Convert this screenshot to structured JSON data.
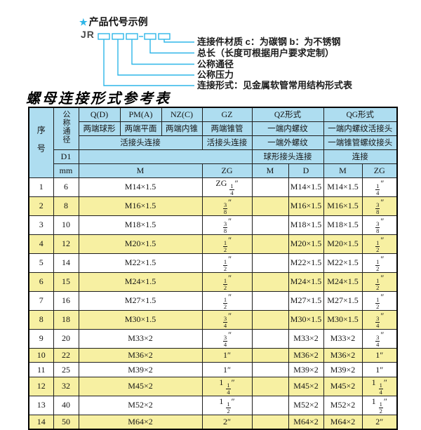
{
  "colors": {
    "accent": "#2eb6e8",
    "table_header_bg": "#aeddf0",
    "row_alt_bg": "#f7f0a2"
  },
  "diagram": {
    "star_icon": "★",
    "title": "产品代号示例",
    "code_prefix": "JR",
    "labels": [
      "连接件材质  c：为碳钢  b：为不锈钢",
      "总长（长度可根据用户要求定制）",
      "公称通径",
      "公称压力",
      "连接形式：见金属软管常用结构形式表"
    ]
  },
  "table": {
    "title": "螺母连接形式参考表",
    "header": {
      "seq": "序号",
      "dn": "公称通径",
      "d1": "D1",
      "mm": "mm",
      "q": "Q(D)",
      "pm": "PM(A)",
      "nz": "NZ(C)",
      "gz": "GZ",
      "qz": "QZ形式",
      "qg": "QG形式",
      "q_desc": "两端球形",
      "pm_desc": "两端平面",
      "nz_desc": "两端内锥",
      "gz_desc": "两端锥管",
      "qz_desc1": "一端内螺纹",
      "qg_desc1": "一端内螺纹活接头",
      "union_conn": "活接头连接",
      "gz_conn": "活接头连接",
      "qz_desc2": "一端外螺纹",
      "qg_desc2": "一端锥管螺纹接头",
      "qz_conn": "球形接头连接",
      "qg_conn": "连接",
      "m": "M",
      "d": "D",
      "zg": "ZG"
    },
    "rows": [
      [
        "1",
        "6",
        "M14×1.5",
        "ZG 1/4″",
        "",
        "M14×1.5",
        "M14×1.5",
        "1/4″"
      ],
      [
        "2",
        "8",
        "M16×1.5",
        "3/8″",
        "",
        "M16×1.5",
        "M16×1.5",
        "3/8″"
      ],
      [
        "3",
        "10",
        "M18×1.5",
        "3/8″",
        "",
        "M18×1.5",
        "M18×1.5",
        "3/8″"
      ],
      [
        "4",
        "12",
        "M20×1.5",
        "1/2″",
        "",
        "M20×1.5",
        "M20×1.5",
        "1/2″"
      ],
      [
        "5",
        "14",
        "M22×1.5",
        "1/2″",
        "",
        "M22×1.5",
        "M22×1.5",
        "1/2″"
      ],
      [
        "6",
        "15",
        "M24×1.5",
        "1/2″",
        "",
        "M24×1.5",
        "M24×1.5",
        "1/2″"
      ],
      [
        "7",
        "16",
        "M27×1.5",
        "1/2″",
        "",
        "M27×1.5",
        "M27×1.5",
        "1/2″"
      ],
      [
        "8",
        "18",
        "M30×1.5",
        "3/4″",
        "",
        "M30×1.5",
        "M30×1.5",
        "3/4″"
      ],
      [
        "9",
        "20",
        "M33×2",
        "3/4″",
        "",
        "M33×2",
        "M33×2",
        "3/4″"
      ],
      [
        "10",
        "22",
        "M36×2",
        "1″",
        "",
        "M36×2",
        "M36×2",
        "1″"
      ],
      [
        "11",
        "25",
        "M39×2",
        "1″",
        "",
        "M39×2",
        "M39×2",
        "1″"
      ],
      [
        "12",
        "32",
        "M45×2",
        "1 1/4″",
        "",
        "M45×2",
        "M45×2",
        "1 1/4″"
      ],
      [
        "13",
        "40",
        "M52×2",
        "1 1/2″",
        "",
        "M52×2",
        "M52×2",
        "1 1/2″"
      ],
      [
        "14",
        "50",
        "M64×2",
        "2″",
        "",
        "M64×2",
        "M64×2",
        "2″"
      ]
    ]
  }
}
